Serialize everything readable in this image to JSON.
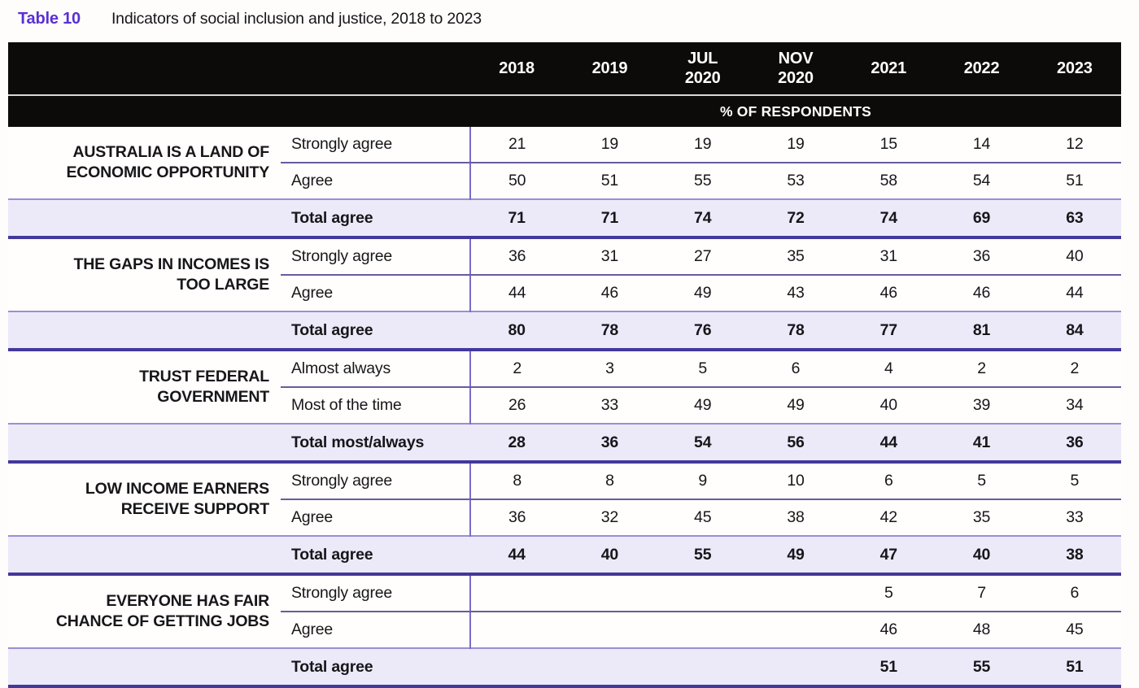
{
  "title": {
    "label": "Table 10",
    "text": "Indicators of social inclusion and justice, 2018 to 2023"
  },
  "table": {
    "subheader": "% OF RESPONDENTS",
    "year_headers": [
      [
        "2018"
      ],
      [
        "2019"
      ],
      [
        "JUL",
        "2020"
      ],
      [
        "NOV",
        "2020"
      ],
      [
        "2021"
      ],
      [
        "2022"
      ],
      [
        "2023"
      ]
    ],
    "groups": [
      {
        "label": "AUSTRALIA IS A LAND OF\nECONOMIC OPPORTUNITY",
        "rows": [
          {
            "label": "Strongly agree",
            "values": [
              "21",
              "19",
              "19",
              "19",
              "15",
              "14",
              "12"
            ]
          },
          {
            "label": "Agree",
            "values": [
              "50",
              "51",
              "55",
              "53",
              "58",
              "54",
              "51"
            ]
          }
        ],
        "total": {
          "label": "Total agree",
          "values": [
            "71",
            "71",
            "74",
            "72",
            "74",
            "69",
            "63"
          ]
        }
      },
      {
        "label": "THE GAPS IN INCOMES IS\nTOO LARGE",
        "rows": [
          {
            "label": "Strongly agree",
            "values": [
              "36",
              "31",
              "27",
              "35",
              "31",
              "36",
              "40"
            ]
          },
          {
            "label": "Agree",
            "values": [
              "44",
              "46",
              "49",
              "43",
              "46",
              "46",
              "44"
            ]
          }
        ],
        "total": {
          "label": "Total agree",
          "values": [
            "80",
            "78",
            "76",
            "78",
            "77",
            "81",
            "84"
          ]
        }
      },
      {
        "label": "TRUST FEDERAL\nGOVERNMENT",
        "rows": [
          {
            "label": "Almost always",
            "values": [
              "2",
              "3",
              "5",
              "6",
              "4",
              "2",
              "2"
            ]
          },
          {
            "label": "Most of the time",
            "values": [
              "26",
              "33",
              "49",
              "49",
              "40",
              "39",
              "34"
            ]
          }
        ],
        "total": {
          "label": "Total most/always",
          "values": [
            "28",
            "36",
            "54",
            "56",
            "44",
            "41",
            "36"
          ]
        }
      },
      {
        "label": "LOW INCOME EARNERS\nRECEIVE SUPPORT",
        "rows": [
          {
            "label": "Strongly agree",
            "values": [
              "8",
              "8",
              "9",
              "10",
              "6",
              "5",
              "5"
            ]
          },
          {
            "label": "Agree",
            "values": [
              "36",
              "32",
              "45",
              "38",
              "42",
              "35",
              "33"
            ]
          }
        ],
        "total": {
          "label": "Total agree",
          "values": [
            "44",
            "40",
            "55",
            "49",
            "47",
            "40",
            "38"
          ]
        }
      },
      {
        "label": "EVERYONE HAS FAIR\nCHANCE OF GETTING JOBS",
        "rows": [
          {
            "label": "Strongly agree",
            "values": [
              "",
              "",
              "",
              "",
              "5",
              "7",
              "6"
            ]
          },
          {
            "label": "Agree",
            "values": [
              "",
              "",
              "",
              "",
              "46",
              "48",
              "45"
            ]
          }
        ],
        "total": {
          "label": "Total agree",
          "values": [
            "",
            "",
            "",
            "",
            "51",
            "55",
            "51"
          ]
        }
      }
    ]
  },
  "colors": {
    "accent_purple": "#5a2fd4",
    "header_bg": "#0d0b0a",
    "header_text": "#ffffff",
    "total_row_bg": "#eceaf8",
    "thin_line_purple": "#7b6cc8",
    "row_separator": "#675c9e",
    "group_separator": "#43389c",
    "total_top_border": "#9a8fd6"
  }
}
